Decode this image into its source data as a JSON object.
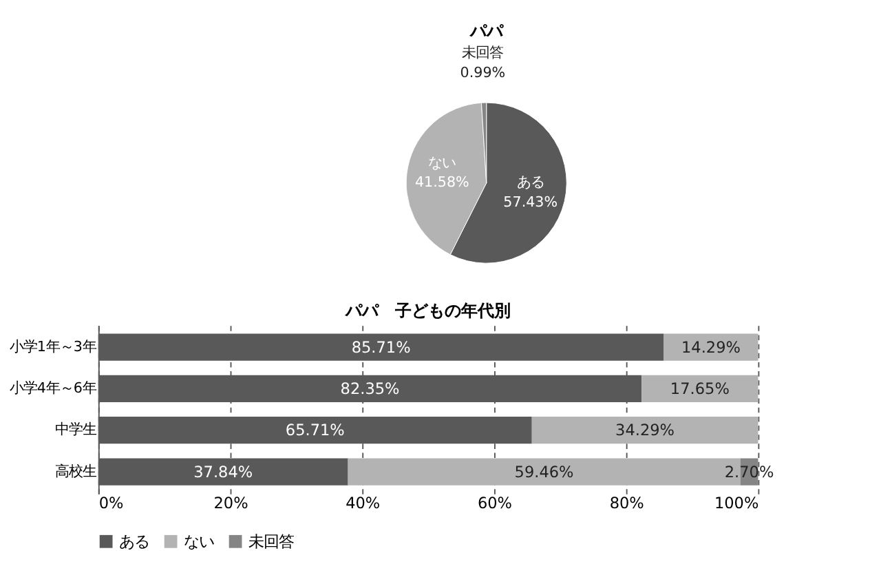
{
  "chart_data": [
    {
      "type": "pie",
      "title": "パパ",
      "categories": [
        "ある",
        "ない",
        "未回答"
      ],
      "values": [
        57.43,
        41.58,
        0.99
      ],
      "colors": [
        "#595959",
        "#b3b3b3",
        "#858585"
      ],
      "value_labels": [
        "57.43%",
        "41.58%",
        "0.99%"
      ],
      "legend": false
    },
    {
      "type": "bar",
      "orientation": "horizontal",
      "stacked": true,
      "title": "パパ　子どもの年代別",
      "categories": [
        "小学1年～3年",
        "小学4年～6年",
        "中学生",
        "高校生"
      ],
      "series": [
        {
          "name": "ある",
          "color": "#595959",
          "values": [
            85.71,
            82.35,
            65.71,
            37.84
          ],
          "value_labels": [
            "85.71%",
            "82.35%",
            "65.71%",
            "37.84%"
          ]
        },
        {
          "name": "ない",
          "color": "#b3b3b3",
          "values": [
            14.29,
            17.65,
            34.29,
            59.46
          ],
          "value_labels": [
            "14.29%",
            "17.65%",
            "34.29%",
            "59.46%"
          ]
        },
        {
          "name": "未回答",
          "color": "#858585",
          "values": [
            null,
            null,
            null,
            2.7
          ],
          "value_labels": [
            null,
            null,
            null,
            "2.70%"
          ]
        }
      ],
      "xlim": [
        0,
        100
      ],
      "xticks": [
        {
          "value": 0,
          "label": "0%"
        },
        {
          "value": 20,
          "label": "20%"
        },
        {
          "value": 40,
          "label": "40%"
        },
        {
          "value": 60,
          "label": "60%"
        },
        {
          "value": 80,
          "label": "80%"
        },
        {
          "value": 100,
          "label": "100%"
        }
      ],
      "grid": "x",
      "legend": "bottom"
    }
  ]
}
